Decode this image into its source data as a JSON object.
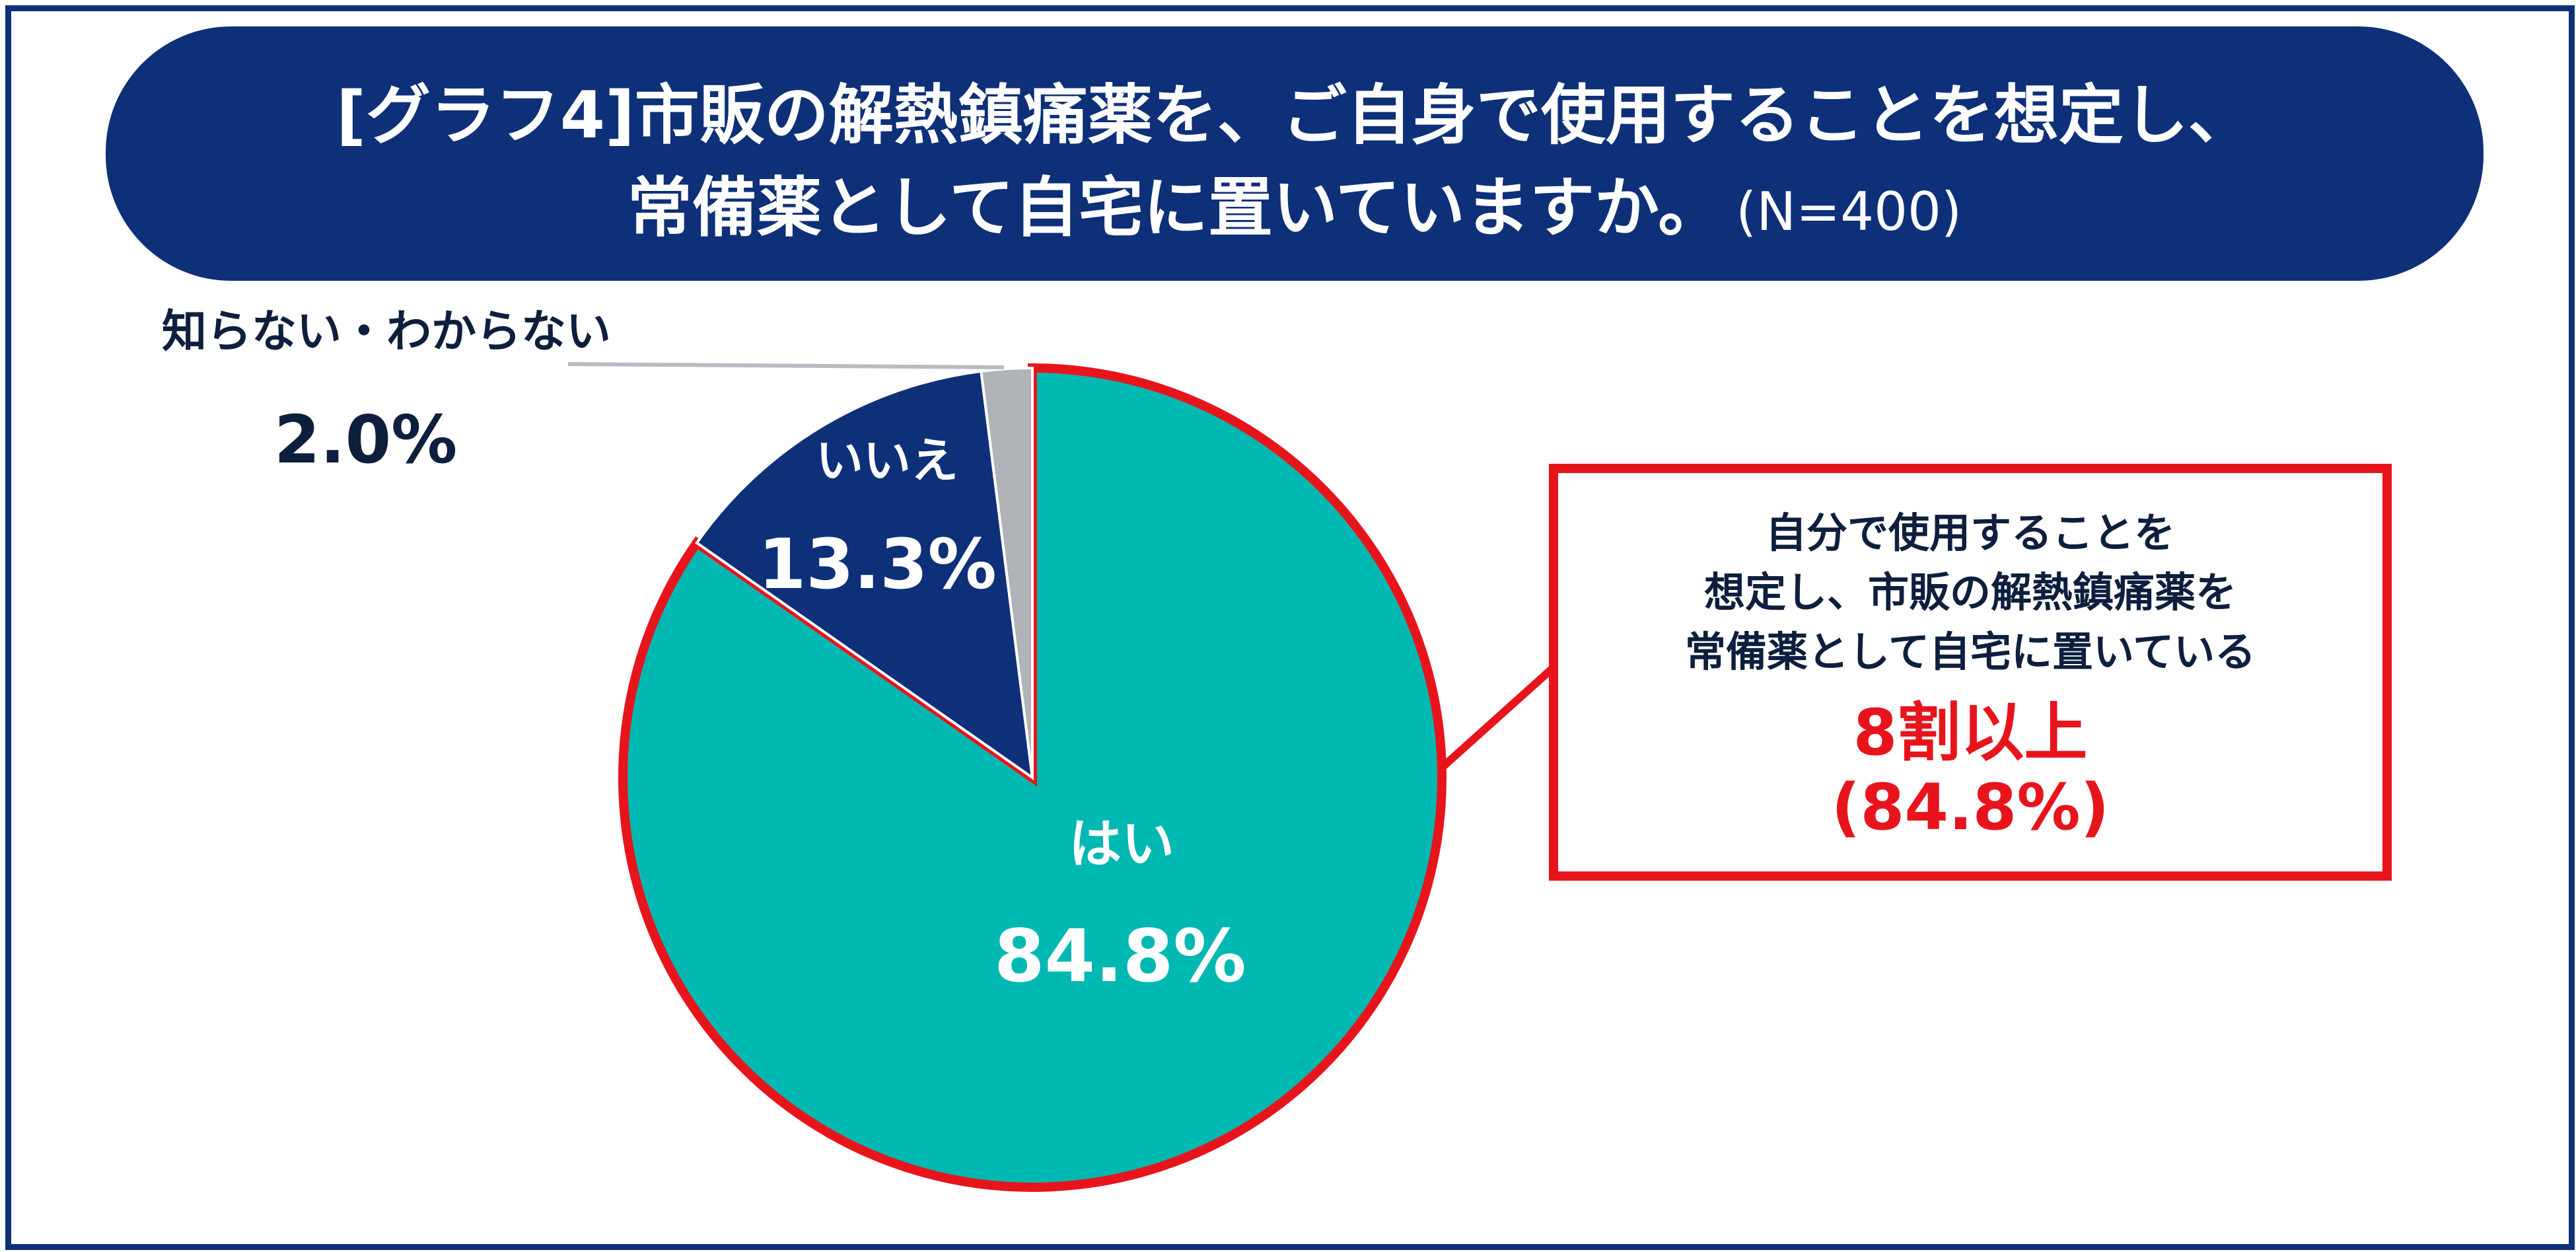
{
  "title": {
    "line1": "[グラフ4]市販の解熱鎮痛薬を、ご自身で使用することを想定し、",
    "line2": "常備薬として自宅に置いていますか。",
    "n": "(N=400)"
  },
  "chart_data": {
    "type": "pie",
    "title": "[グラフ4]市販の解熱鎮痛薬を、ご自身で使用することを想定し、常備薬として自宅に置いていますか。(N=400)",
    "slices": [
      {
        "label": "はい",
        "value": 84.8,
        "value_label": "84.8%",
        "color": "#00b8b2"
      },
      {
        "label": "いいえ",
        "value": 13.3,
        "value_label": "13.3%",
        "color": "#0e3079"
      },
      {
        "label": "知らない・わからない",
        "value": 2.0,
        "value_label": "2.0%",
        "color": "#b0b3b8"
      }
    ],
    "start_angle": "12 o'clock",
    "direction": "clockwise",
    "highlight_slice": "はい",
    "highlight_color": "#e8141c"
  },
  "callout": {
    "line1": "自分で使用することを",
    "line2": "想定し、市販の解熱鎮痛薬を",
    "line3": "常備薬として自宅に置いている",
    "big1": "8割以上",
    "big2": "(84.8%)"
  }
}
